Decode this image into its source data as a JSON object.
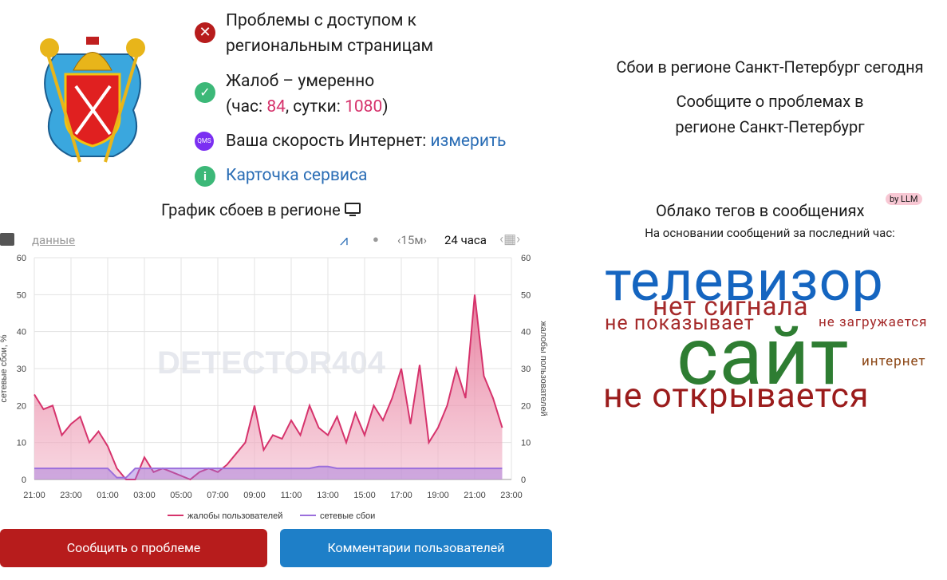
{
  "status": [
    {
      "text": "Проблемы с доступом к региональным страницам"
    },
    {
      "text": "Жалоб – умеренно",
      "prefix": "(час: ",
      "hour": 84,
      "mid": ", сутки: ",
      "day": 1080,
      "suffix": ")"
    },
    {
      "badge": "QMS",
      "text": "Ваша скорость Интернет: ",
      "link": "измерить"
    },
    {
      "badge": "i",
      "link": "Карточка сервиса"
    }
  ],
  "right": {
    "title": "Сбои в регионе Санкт-Петербург сегодня",
    "report_line1": "Сообщите о проблемах в",
    "report_line2": "регионе Санкт-Петербург"
  },
  "chart_heading": "График сбоев в регионе",
  "toolbar": {
    "data_link": "данные",
    "interval": "‹15м›",
    "period": "24 часа"
  },
  "chart_data": {
    "type": "line",
    "watermark": "DETECTOR404",
    "x": [
      0,
      0.5,
      1,
      1.5,
      2,
      2.5,
      3,
      3.5,
      4,
      4.5,
      5,
      5.5,
      6,
      6.5,
      7,
      7.5,
      8,
      8.5,
      9,
      9.5,
      10,
      10.5,
      11,
      11.5,
      12,
      12.5,
      13,
      13.5,
      14,
      14.5,
      15,
      15.5,
      16,
      16.5,
      17,
      17.5,
      18,
      18.5,
      19,
      19.5,
      20,
      20.5,
      21,
      21.5,
      22,
      22.5,
      23,
      23.5,
      24,
      24.5,
      25,
      25.5
    ],
    "xlim": [
      0,
      26
    ],
    "xticks": [
      {
        "value": 0,
        "label": "21:00"
      },
      {
        "value": 2,
        "label": "23:00"
      },
      {
        "value": 4,
        "label": "01:00"
      },
      {
        "value": 6,
        "label": "03:00"
      },
      {
        "value": 8,
        "label": "05:00"
      },
      {
        "value": 10,
        "label": "07:00"
      },
      {
        "value": 12,
        "label": "09:00"
      },
      {
        "value": 14,
        "label": "11:00"
      },
      {
        "value": 16,
        "label": "13:00"
      },
      {
        "value": 18,
        "label": "15:00"
      },
      {
        "value": 20,
        "label": "17:00"
      },
      {
        "value": 22,
        "label": "19:00"
      },
      {
        "value": 24,
        "label": "21:00"
      },
      {
        "value": 26,
        "label": "23:00"
      }
    ],
    "ylim": [
      0,
      60
    ],
    "yticks": [
      0,
      10,
      20,
      30,
      40,
      50,
      60
    ],
    "y2lim": [
      0,
      60
    ],
    "y2ticks": [
      0,
      10,
      20,
      30,
      40,
      50,
      60
    ],
    "ylabel": "сетевые сбои, %",
    "y2label": "жалобы пользователей",
    "grid": true,
    "series": [
      {
        "name": "жалобы пользователей",
        "color": "#d6336c",
        "axis": "y2",
        "values": [
          23,
          19,
          20,
          12,
          15,
          17,
          10,
          13,
          9,
          3,
          0,
          0,
          6,
          2,
          3,
          2,
          1,
          0,
          2,
          3,
          2,
          4,
          7,
          10,
          20,
          8,
          12,
          11,
          16,
          12,
          20,
          14,
          12,
          17,
          10,
          18,
          12,
          20,
          16,
          22,
          30,
          15,
          31,
          10,
          14,
          20,
          30,
          22,
          50,
          28,
          22,
          14
        ]
      },
      {
        "name": "сетевые сбои",
        "color": "#9b6fdc",
        "axis": "y",
        "values": [
          3,
          3,
          3,
          3,
          3,
          3,
          3,
          3,
          3,
          0.5,
          0.5,
          3,
          3,
          3,
          3,
          3,
          3,
          3,
          3,
          3,
          3,
          3,
          3,
          3,
          3,
          3,
          3,
          3,
          3,
          3,
          3,
          3.5,
          3.5,
          3,
          3,
          3,
          3,
          3,
          3,
          3,
          3,
          3,
          3,
          3,
          3,
          3,
          3,
          3,
          3,
          3,
          3,
          3
        ]
      }
    ]
  },
  "tag_cloud": {
    "title": "Облако тегов в сообщениях",
    "badge": "by LLM",
    "subtitle": "На основании сообщений за последний час:",
    "tags": [
      {
        "text": "телевизор",
        "color": "#1565c0"
      },
      {
        "text": "нет сигнала",
        "color": "#a52a2a"
      },
      {
        "text": "не показывает",
        "color": "#a52a2a"
      },
      {
        "text": "не загружается",
        "color": "#a52a2a"
      },
      {
        "text": "сайт",
        "color": "#2e7d32"
      },
      {
        "text": "интернет",
        "color": "#8b4513"
      },
      {
        "text": "не открывается",
        "color": "#9b1c1c"
      }
    ]
  },
  "buttons": {
    "report": "Сообщить о проблеме",
    "comments": "Комментарии пользователей"
  }
}
